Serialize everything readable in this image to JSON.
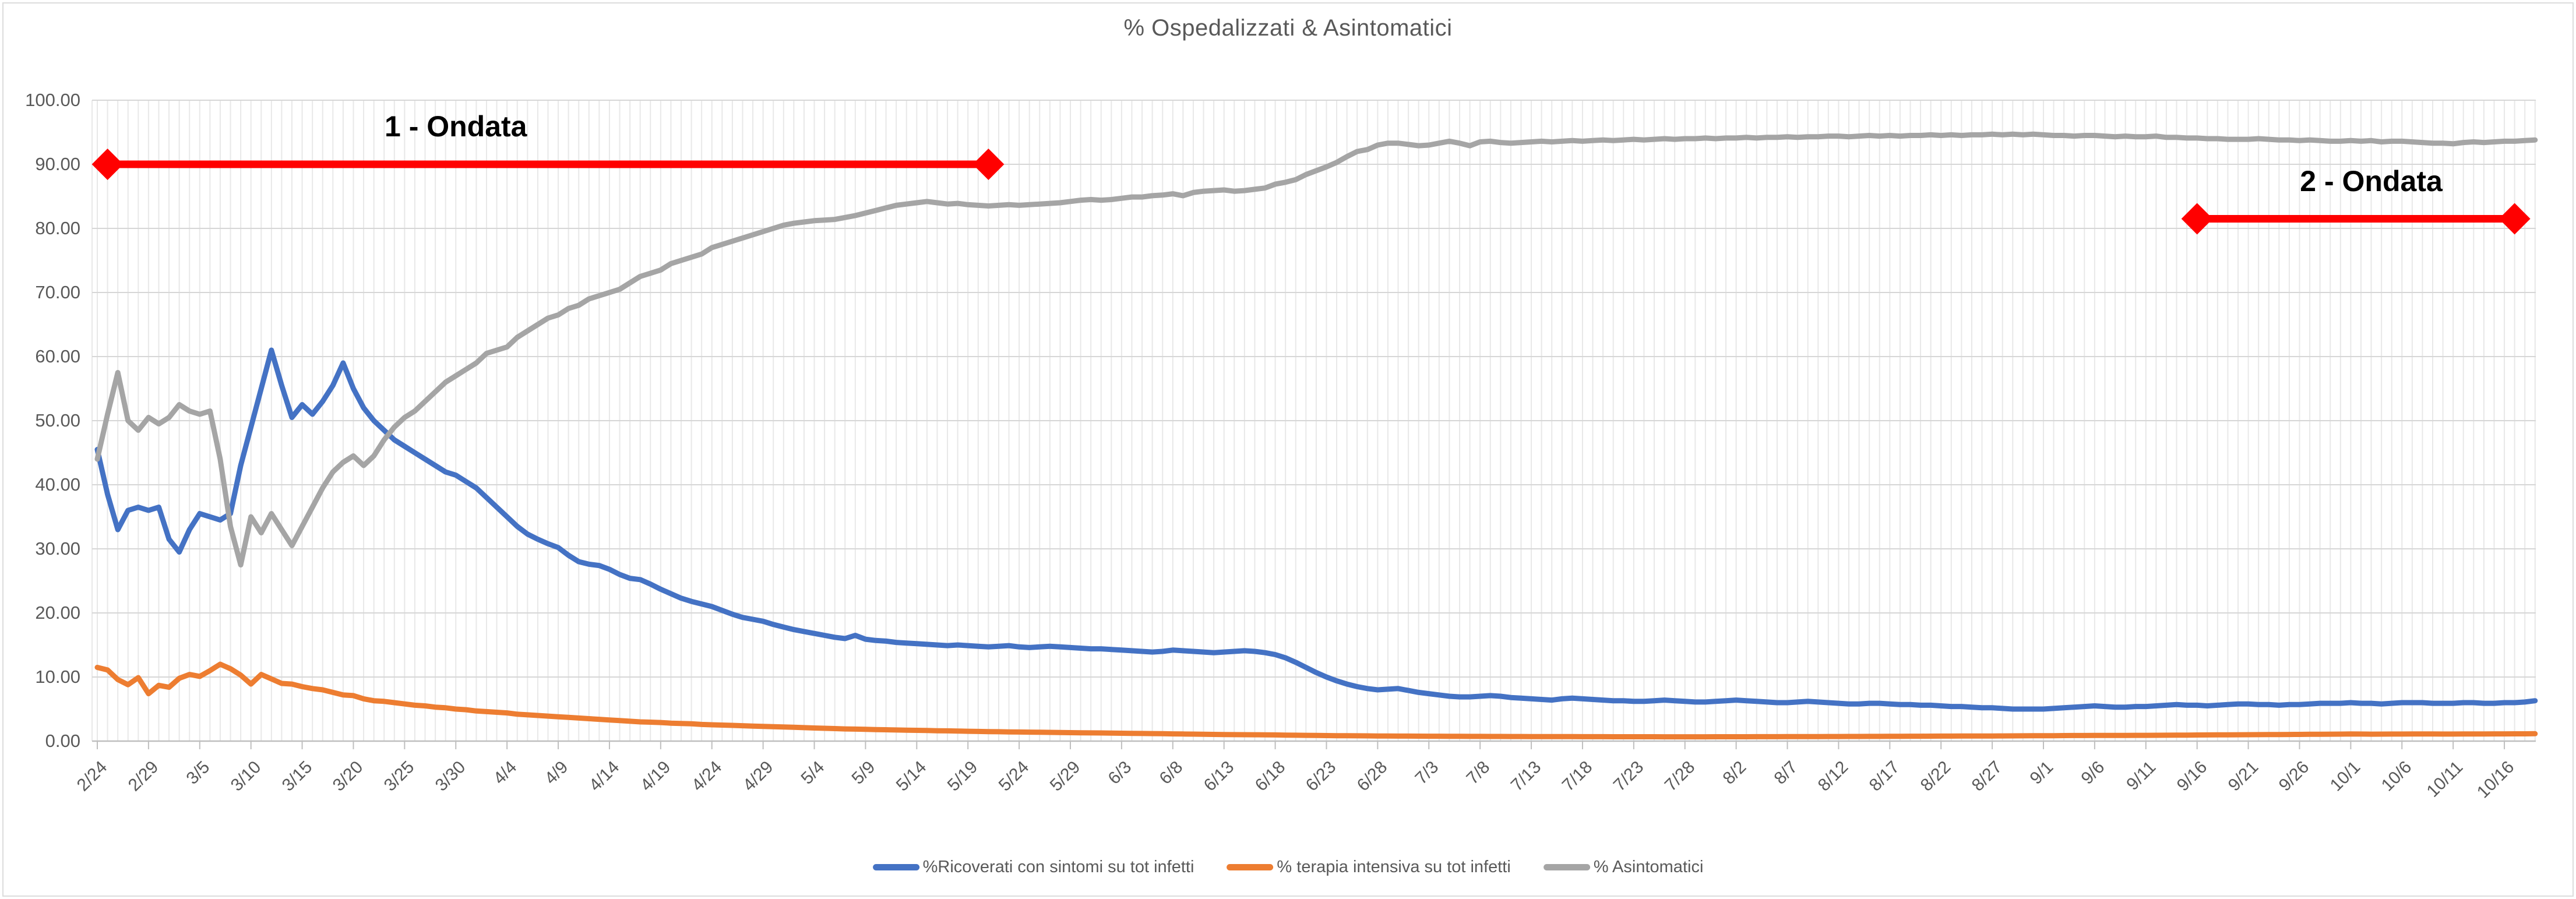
{
  "chart_data": {
    "type": "line",
    "title": "% Ospedalizzati & Asintomatici",
    "n_points": 239,
    "x_first_point_label": "2/24",
    "x_points_per_tick": 5,
    "x_tick_labels": [
      "2/24",
      "2/29",
      "3/5",
      "3/10",
      "3/15",
      "3/20",
      "3/25",
      "3/30",
      "4/4",
      "4/9",
      "4/14",
      "4/19",
      "4/24",
      "4/29",
      "5/4",
      "5/9",
      "5/14",
      "5/19",
      "5/24",
      "5/29",
      "6/3",
      "6/8",
      "6/13",
      "6/18",
      "6/23",
      "6/28",
      "7/3",
      "7/8",
      "7/13",
      "7/18",
      "7/23",
      "7/28",
      "8/2",
      "8/7",
      "8/12",
      "8/17",
      "8/22",
      "8/27",
      "9/1",
      "9/6",
      "9/11",
      "9/16",
      "9/21",
      "9/26",
      "10/1",
      "10/6",
      "10/11",
      "10/16"
    ],
    "ylim": [
      0,
      100
    ],
    "y_tick_labels": [
      "0.00",
      "10.00",
      "20.00",
      "30.00",
      "40.00",
      "50.00",
      "60.00",
      "70.00",
      "80.00",
      "90.00",
      "100.00"
    ],
    "grid": {
      "horizontal_major": "on",
      "vertical_daily_minor": "on"
    },
    "legend_position": "bottom",
    "series": [
      {
        "name": "%Ricoverati con sintomi su tot infetti",
        "color": "#4472C4",
        "values": [
          45.5,
          38.5,
          33,
          36,
          36.5,
          36,
          36.5,
          31.5,
          29.5,
          33,
          35.5,
          35,
          34.5,
          35.5,
          43,
          49,
          55,
          61,
          55.5,
          50.5,
          52.5,
          51,
          53,
          55.5,
          59,
          55,
          52,
          50,
          48.5,
          47,
          46,
          45,
          44,
          43,
          42,
          41.5,
          40.5,
          39.5,
          38,
          36.5,
          35,
          33.5,
          32.3,
          31.5,
          30.8,
          30.2,
          29,
          28,
          27.6,
          27.4,
          26.8,
          26,
          25.4,
          25.2,
          24.5,
          23.7,
          23,
          22.3,
          21.8,
          21.4,
          21,
          20.4,
          19.8,
          19.3,
          19,
          18.7,
          18.2,
          17.8,
          17.4,
          17.1,
          16.8,
          16.5,
          16.2,
          16,
          16.5,
          15.9,
          15.7,
          15.6,
          15.4,
          15.3,
          15.2,
          15.1,
          15,
          14.9,
          15,
          14.9,
          14.8,
          14.7,
          14.8,
          14.9,
          14.7,
          14.6,
          14.7,
          14.8,
          14.7,
          14.6,
          14.5,
          14.4,
          14.4,
          14.3,
          14.2,
          14.1,
          14,
          13.9,
          14,
          14.2,
          14.1,
          14,
          13.9,
          13.8,
          13.9,
          14,
          14.1,
          14,
          13.8,
          13.5,
          13,
          12.3,
          11.5,
          10.7,
          10,
          9.4,
          8.9,
          8.5,
          8.2,
          8,
          8.1,
          8.2,
          7.9,
          7.6,
          7.4,
          7.2,
          7,
          6.9,
          6.9,
          7,
          7.1,
          7,
          6.8,
          6.7,
          6.6,
          6.5,
          6.4,
          6.6,
          6.7,
          6.6,
          6.5,
          6.4,
          6.3,
          6.3,
          6.2,
          6.2,
          6.3,
          6.4,
          6.3,
          6.2,
          6.1,
          6.1,
          6.2,
          6.3,
          6.4,
          6.3,
          6.2,
          6.1,
          6,
          6,
          6.1,
          6.2,
          6.1,
          6,
          5.9,
          5.8,
          5.8,
          5.9,
          5.9,
          5.8,
          5.7,
          5.7,
          5.6,
          5.6,
          5.5,
          5.4,
          5.4,
          5.3,
          5.2,
          5.2,
          5.1,
          5,
          5,
          5,
          5,
          5.1,
          5.2,
          5.3,
          5.4,
          5.5,
          5.4,
          5.3,
          5.3,
          5.4,
          5.4,
          5.5,
          5.6,
          5.7,
          5.6,
          5.6,
          5.5,
          5.6,
          5.7,
          5.8,
          5.8,
          5.7,
          5.7,
          5.6,
          5.7,
          5.7,
          5.8,
          5.9,
          5.9,
          5.9,
          6,
          5.9,
          5.9,
          5.8,
          5.9,
          6,
          6,
          6,
          5.9,
          5.9,
          5.9,
          6,
          6,
          5.9,
          5.9,
          6,
          6,
          6.1,
          6.3
        ]
      },
      {
        "name": "% terapia intensiva su tot infetti",
        "color": "#ED7D31",
        "values": [
          11.5,
          11.1,
          9.6,
          8.8,
          9.9,
          7.4,
          8.7,
          8.4,
          9.8,
          10.4,
          10.1,
          11,
          12,
          11.3,
          10.3,
          8.9,
          10.4,
          9.7,
          9,
          8.9,
          8.5,
          8.2,
          8,
          7.6,
          7.2,
          7.1,
          6.6,
          6.3,
          6.2,
          6,
          5.8,
          5.6,
          5.5,
          5.3,
          5.2,
          5,
          4.9,
          4.7,
          4.6,
          4.5,
          4.4,
          4.2,
          4.1,
          4,
          3.9,
          3.8,
          3.7,
          3.6,
          3.5,
          3.4,
          3.3,
          3.2,
          3.1,
          3,
          2.95,
          2.9,
          2.8,
          2.75,
          2.7,
          2.6,
          2.55,
          2.5,
          2.45,
          2.4,
          2.35,
          2.3,
          2.25,
          2.2,
          2.15,
          2.1,
          2.05,
          2,
          1.95,
          1.9,
          1.87,
          1.84,
          1.8,
          1.77,
          1.74,
          1.7,
          1.68,
          1.65,
          1.62,
          1.6,
          1.57,
          1.54,
          1.51,
          1.48,
          1.46,
          1.44,
          1.42,
          1.4,
          1.38,
          1.36,
          1.34,
          1.32,
          1.3,
          1.28,
          1.27,
          1.25,
          1.23,
          1.21,
          1.19,
          1.17,
          1.15,
          1.13,
          1.11,
          1.09,
          1.07,
          1.05,
          1.03,
          1.01,
          1,
          0.99,
          0.98,
          0.96,
          0.94,
          0.92,
          0.9,
          0.88,
          0.86,
          0.85,
          0.84,
          0.83,
          0.82,
          0.8,
          0.79,
          0.78,
          0.78,
          0.77,
          0.76,
          0.76,
          0.75,
          0.75,
          0.74,
          0.74,
          0.73,
          0.73,
          0.72,
          0.72,
          0.71,
          0.71,
          0.7,
          0.7,
          0.7,
          0.69,
          0.69,
          0.69,
          0.68,
          0.68,
          0.68,
          0.68,
          0.68,
          0.67,
          0.67,
          0.67,
          0.67,
          0.67,
          0.68,
          0.68,
          0.68,
          0.68,
          0.69,
          0.69,
          0.69,
          0.7,
          0.7,
          0.71,
          0.71,
          0.72,
          0.72,
          0.73,
          0.73,
          0.74,
          0.74,
          0.75,
          0.75,
          0.76,
          0.76,
          0.77,
          0.78,
          0.78,
          0.79,
          0.79,
          0.8,
          0.8,
          0.81,
          0.82,
          0.83,
          0.84,
          0.85,
          0.85,
          0.86,
          0.87,
          0.87,
          0.88,
          0.88,
          0.89,
          0.89,
          0.9,
          0.9,
          0.91,
          0.92,
          0.93,
          0.94,
          0.95,
          0.96,
          0.97,
          0.98,
          0.99,
          1,
          1.01,
          1.02,
          1.03,
          1.04,
          1.05,
          1.06,
          1.07,
          1.08,
          1.09,
          1.12,
          1.1,
          1.08,
          1.09,
          1.1,
          1.1,
          1.11,
          1.12,
          1.11,
          1.1,
          1.1,
          1.11,
          1.12,
          1.12,
          1.13,
          1.13,
          1.14,
          1.14,
          1.15
        ]
      },
      {
        "name": "% Asintomatici",
        "color": "#A5A5A5",
        "values": [
          44,
          51,
          57.5,
          50,
          48.5,
          50.5,
          49.5,
          50.5,
          52.5,
          51.5,
          51,
          51.5,
          44,
          33.5,
          27.5,
          35,
          32.5,
          35.5,
          33,
          30.5,
          33.5,
          36.5,
          39.5,
          42,
          43.5,
          44.5,
          43,
          44.5,
          47,
          49,
          50.5,
          51.5,
          53,
          54.5,
          56,
          57,
          58,
          59,
          60.5,
          61,
          61.5,
          63,
          64,
          65,
          66,
          66.5,
          67.5,
          68,
          69,
          69.5,
          70,
          70.5,
          71.5,
          72.5,
          73,
          73.5,
          74.5,
          75,
          75.5,
          76,
          77,
          77.5,
          78,
          78.5,
          79,
          79.5,
          80,
          80.5,
          80.8,
          81,
          81.2,
          81.3,
          81.4,
          81.7,
          82,
          82.4,
          82.8,
          83.2,
          83.6,
          83.8,
          84,
          84.2,
          84,
          83.8,
          83.9,
          83.7,
          83.6,
          83.5,
          83.6,
          83.7,
          83.6,
          83.7,
          83.8,
          83.9,
          84,
          84.2,
          84.4,
          84.5,
          84.4,
          84.5,
          84.7,
          84.9,
          84.9,
          85.1,
          85.2,
          85.4,
          85.1,
          85.6,
          85.8,
          85.9,
          86,
          85.8,
          85.9,
          86.1,
          86.3,
          86.9,
          87.2,
          87.6,
          88.4,
          89,
          89.6,
          90.3,
          91.2,
          92,
          92.3,
          93,
          93.3,
          93.3,
          93.1,
          92.9,
          93,
          93.3,
          93.6,
          93.3,
          92.9,
          93.5,
          93.6,
          93.4,
          93.3,
          93.4,
          93.5,
          93.6,
          93.5,
          93.6,
          93.7,
          93.6,
          93.7,
          93.8,
          93.7,
          93.8,
          93.9,
          93.8,
          93.9,
          94,
          93.9,
          94,
          94,
          94.1,
          94,
          94.1,
          94.1,
          94.2,
          94.1,
          94.2,
          94.2,
          94.3,
          94.2,
          94.3,
          94.3,
          94.4,
          94.4,
          94.3,
          94.4,
          94.5,
          94.4,
          94.5,
          94.4,
          94.5,
          94.5,
          94.6,
          94.5,
          94.6,
          94.5,
          94.6,
          94.6,
          94.7,
          94.6,
          94.7,
          94.6,
          94.7,
          94.6,
          94.5,
          94.5,
          94.4,
          94.5,
          94.5,
          94.4,
          94.3,
          94.4,
          94.3,
          94.3,
          94.4,
          94.2,
          94.2,
          94.1,
          94.1,
          94,
          94,
          93.9,
          93.9,
          93.9,
          94,
          93.9,
          93.8,
          93.8,
          93.7,
          93.8,
          93.7,
          93.6,
          93.6,
          93.7,
          93.6,
          93.7,
          93.5,
          93.6,
          93.6,
          93.5,
          93.4,
          93.3,
          93.3,
          93.2,
          93.4,
          93.5,
          93.4,
          93.5,
          93.6,
          93.6,
          93.7,
          93.8
        ]
      }
    ],
    "annotations": [
      {
        "label": "1 - Ondata",
        "value": 90,
        "start_point": 1,
        "end_point": 87,
        "label_center_point": 35,
        "color": "#FF0000"
      },
      {
        "label": "2 - Ondata",
        "value": 81.5,
        "start_point": 205,
        "end_point": 236,
        "label_center_point": 222,
        "color": "#FF0000"
      }
    ]
  },
  "colors": {
    "series_blue": "#4472C4",
    "series_orange": "#ED7D31",
    "series_gray": "#A5A5A5",
    "annotation_red": "#FF0000",
    "text_gray": "#595959",
    "major_gridline": "#D6D6D6",
    "minor_gridline": "#E8E8E8",
    "axis_line": "#BFBFBF"
  }
}
